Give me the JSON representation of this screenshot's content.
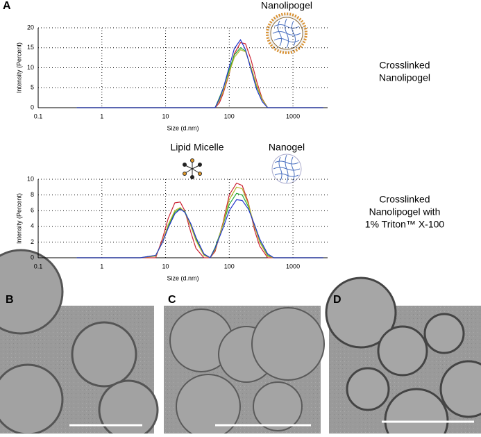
{
  "panel_label": "A",
  "chart_data": [
    {
      "type": "line",
      "xscale": "log",
      "grid": true,
      "annotation": "Nanolipogel",
      "xlabel": "Size (d.nm)",
      "ylabel": "Intensity (Percent)",
      "xlim": [
        0.1,
        3500
      ],
      "xticks": [
        0.1,
        1,
        10,
        100,
        1000
      ],
      "ylim": [
        0,
        20
      ],
      "yticks": [
        0,
        5,
        10,
        15,
        20
      ],
      "x": [
        0.4,
        1,
        4,
        10,
        30,
        60,
        70,
        80,
        100,
        120,
        150,
        180,
        220,
        270,
        330,
        400,
        1000,
        3000
      ],
      "series": [
        {
          "color": "#cc2233",
          "values": [
            0,
            0,
            0,
            0,
            0,
            0,
            1.2,
            3.5,
            8.5,
            13.5,
            16.3,
            16,
            12,
            6.5,
            2.2,
            0,
            0,
            0
          ]
        },
        {
          "color": "#22aa33",
          "values": [
            0,
            0,
            0,
            0,
            0,
            0,
            2.5,
            4.8,
            9.5,
            13.2,
            15,
            14.2,
            10,
            5.2,
            2,
            0,
            0,
            0
          ]
        },
        {
          "color": "#b5b52a",
          "values": [
            0,
            0,
            0,
            0,
            0,
            0,
            1.8,
            4,
            8.8,
            12.6,
            14.5,
            14,
            10.2,
            5.5,
            2,
            0,
            0,
            0
          ]
        },
        {
          "color": "#2233cc",
          "values": [
            0,
            0,
            0,
            0,
            0,
            0,
            2.2,
            4.7,
            10.2,
            14.8,
            17,
            14.5,
            9.5,
            4.5,
            1.5,
            0,
            0,
            0
          ]
        }
      ]
    },
    {
      "type": "line",
      "xscale": "log",
      "grid": true,
      "annotations": [
        "Lipid Micelle",
        "Nanogel"
      ],
      "xlabel": "Size (d.nm)",
      "ylabel": "Intensity (Percent)",
      "xlim": [
        0.1,
        3500
      ],
      "xticks": [
        0.1,
        1,
        10,
        100,
        1000
      ],
      "ylim": [
        0,
        10
      ],
      "yticks": [
        0,
        2,
        4,
        6,
        8,
        10
      ],
      "x": [
        0.4,
        1,
        4,
        7,
        9,
        11,
        14,
        17,
        20,
        25,
        30,
        40,
        50,
        60,
        80,
        100,
        130,
        160,
        200,
        250,
        300,
        400,
        500,
        1000,
        3000
      ],
      "series": [
        {
          "color": "#cc2233",
          "values": [
            0,
            0,
            0,
            0,
            2.5,
            5,
            7,
            7.1,
            6,
            3.2,
            1.2,
            0,
            0,
            0.8,
            4.5,
            8,
            9.5,
            9.2,
            7,
            3.5,
            1.5,
            0,
            0,
            0,
            0
          ]
        },
        {
          "color": "#22aa33",
          "values": [
            0,
            0,
            0,
            0.3,
            2,
            4,
            5.8,
            6.3,
            5.9,
            4.2,
            2.4,
            0.4,
            0,
            1.3,
            4.2,
            6.8,
            8.2,
            8,
            6.5,
            4,
            2.1,
            0.3,
            0,
            0,
            0
          ]
        },
        {
          "color": "#b5b52a",
          "values": [
            0,
            0,
            0,
            0.2,
            2.1,
            4.2,
            6,
            6.4,
            5.8,
            4,
            2.2,
            0.3,
            0,
            1,
            4.3,
            7.4,
            9,
            8.8,
            6.8,
            4,
            2,
            0.2,
            0,
            0,
            0
          ]
        },
        {
          "color": "#2233cc",
          "values": [
            0,
            0,
            0,
            0.3,
            2,
            3.8,
            5.6,
            6.2,
            5.8,
            4.3,
            2.6,
            0.5,
            0,
            1.2,
            3.8,
            6,
            7.4,
            7.3,
            6.2,
            4.2,
            2.4,
            0.5,
            0,
            0,
            0
          ]
        }
      ]
    }
  ],
  "side_labels": [
    [
      "Crosslinked",
      "Nanolipogel"
    ],
    [
      "Crosslinked",
      "Nanolipogel with",
      "1% Triton™ X-100"
    ]
  ],
  "micrographs": [
    "B",
    "C",
    "D"
  ]
}
